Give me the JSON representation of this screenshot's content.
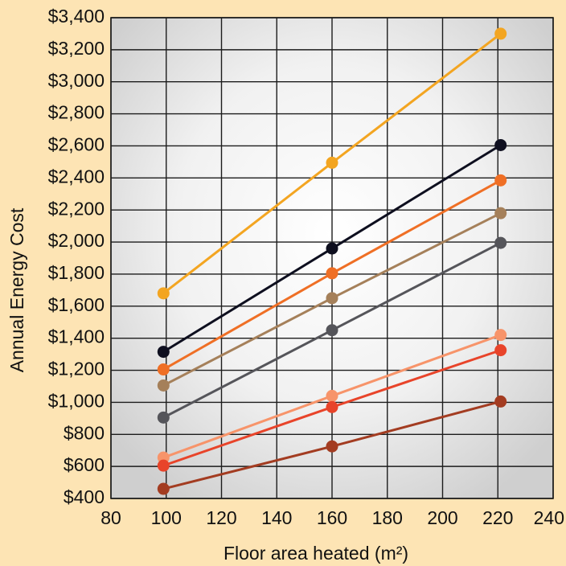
{
  "chart_data": {
    "type": "line",
    "title": "",
    "xlabel": "Floor area heated (m²)",
    "ylabel": "Annual Energy Cost",
    "xlim": [
      80,
      240
    ],
    "ylim": [
      400,
      3400
    ],
    "xticks": [
      "80",
      "100",
      "120",
      "140",
      "160",
      "180",
      "200",
      "220",
      "240"
    ],
    "yticks": [
      "$400",
      "$600",
      "$800",
      "$1,000",
      "$1,200",
      "$1,400",
      "$1,600",
      "$1,800",
      "$2,000",
      "$2,200",
      "$2,400",
      "$2,600",
      "$2,800",
      "$3,000",
      "$3,200",
      "$3,400"
    ],
    "grid": true,
    "x": [
      99,
      160,
      221
    ],
    "series": [
      {
        "color": "#f3a521",
        "values": [
          1680,
          2495,
          3300
        ]
      },
      {
        "color": "#0e0f1f",
        "values": [
          1315,
          1960,
          2605
        ]
      },
      {
        "color": "#ef6f25",
        "values": [
          1205,
          1805,
          2385
        ]
      },
      {
        "color": "#a5805a",
        "values": [
          1105,
          1650,
          2180
        ]
      },
      {
        "color": "#55555a",
        "values": [
          905,
          1450,
          1995
        ]
      },
      {
        "color": "#f7946a",
        "values": [
          655,
          1040,
          1420
        ]
      },
      {
        "color": "#e8442a",
        "values": [
          605,
          970,
          1325
        ]
      },
      {
        "color": "#a33c21",
        "values": [
          460,
          725,
          1005
        ]
      }
    ]
  }
}
